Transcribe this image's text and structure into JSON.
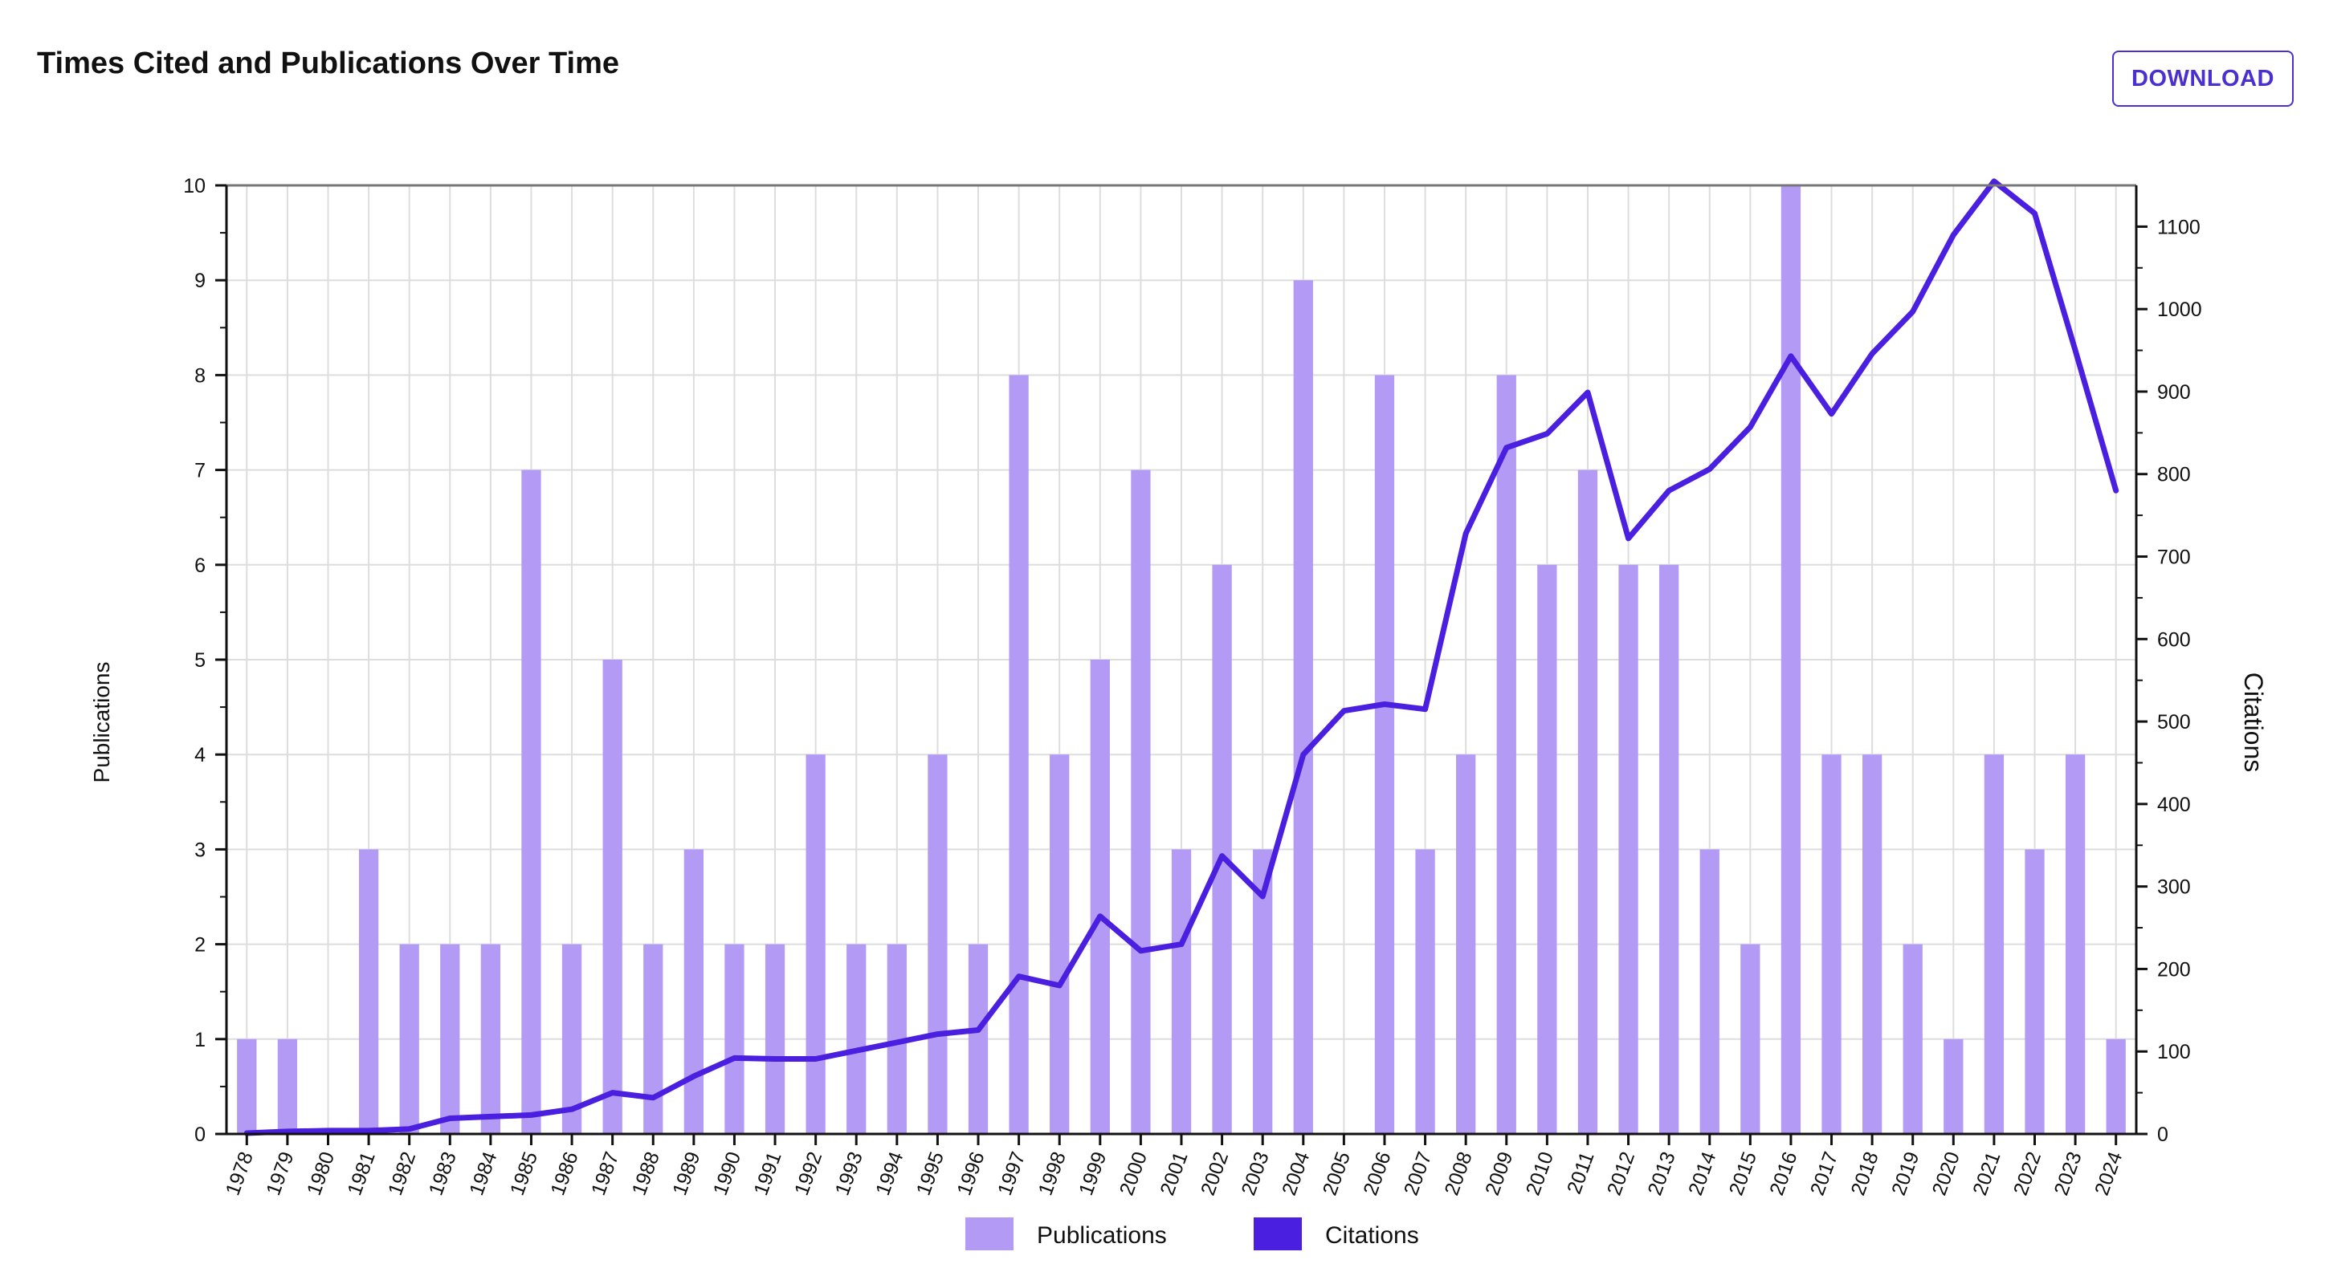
{
  "header": {
    "title": "Times Cited and Publications Over Time",
    "download_label": "DOWNLOAD"
  },
  "colors": {
    "publications_bar": "#b39bf5",
    "citations_line": "#4a1fe0",
    "accent": "#4a2fd1",
    "grid": "#dddddd",
    "axis": "#111111"
  },
  "chart_data": {
    "type": "bar",
    "title": "Times Cited and Publications Over Time",
    "categories": [
      "1978",
      "1979",
      "1980",
      "1981",
      "1982",
      "1983",
      "1984",
      "1985",
      "1986",
      "1987",
      "1988",
      "1989",
      "1990",
      "1991",
      "1992",
      "1993",
      "1994",
      "1995",
      "1996",
      "1997",
      "1998",
      "1999",
      "2000",
      "2001",
      "2002",
      "2003",
      "2004",
      "2005",
      "2006",
      "2007",
      "2008",
      "2009",
      "2010",
      "2011",
      "2012",
      "2013",
      "2014",
      "2015",
      "2016",
      "2017",
      "2018",
      "2019",
      "2020",
      "2021",
      "2022",
      "2023",
      "2024"
    ],
    "series": [
      {
        "name": "Publications",
        "type": "bar",
        "axis": "left",
        "values": [
          1,
          1,
          0,
          3,
          2,
          2,
          2,
          7,
          2,
          5,
          2,
          3,
          2,
          2,
          4,
          2,
          2,
          4,
          2,
          8,
          4,
          5,
          7,
          3,
          6,
          3,
          9,
          0,
          8,
          3,
          4,
          8,
          6,
          7,
          6,
          6,
          3,
          2,
          10,
          4,
          4,
          2,
          1,
          4,
          3,
          4,
          1
        ]
      },
      {
        "name": "Citations",
        "type": "line",
        "axis": "right",
        "values": [
          1,
          3,
          4,
          4,
          6,
          19,
          21,
          23,
          30,
          50,
          44,
          70,
          92,
          91,
          91,
          101,
          111,
          121,
          126,
          191,
          180,
          264,
          222,
          230,
          337,
          288,
          460,
          513,
          521,
          515,
          728,
          832,
          849,
          899,
          722,
          780,
          806,
          857,
          943,
          873,
          946,
          997,
          1090,
          1155,
          1116,
          950,
          780
        ]
      }
    ],
    "ylabel": "Publications",
    "ylim": [
      0,
      10
    ],
    "yticks": [
      0,
      1,
      2,
      3,
      4,
      5,
      6,
      7,
      8,
      9,
      10
    ],
    "y2label": "Citations",
    "y2lim": [
      0,
      1150
    ],
    "y2ticks": [
      0,
      100,
      200,
      300,
      400,
      500,
      600,
      700,
      800,
      900,
      1000,
      1100
    ],
    "grid": true,
    "legend": {
      "position": "bottom-center",
      "entries": [
        "Publications",
        "Citations"
      ]
    }
  }
}
